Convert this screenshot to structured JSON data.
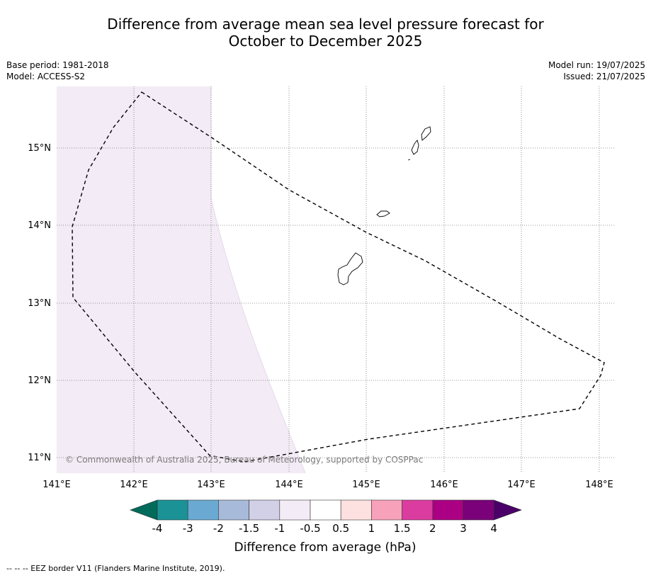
{
  "title": {
    "line1": "Difference from average mean sea level pressure forecast for",
    "line2": "October to December 2025"
  },
  "meta_left": {
    "base_period": "Base period: 1981-2018",
    "model": "Model: ACCESS-S2"
  },
  "meta_right": {
    "model_run": "Model run: 19/07/2025",
    "issued": "Issued: 21/07/2025"
  },
  "map": {
    "lon_ticks": [
      "141°E",
      "142°E",
      "143°E",
      "144°E",
      "145°E",
      "146°E",
      "147°E",
      "148°E"
    ],
    "lat_ticks": [
      "15°N",
      "14°N",
      "13°N",
      "12°N",
      "11°N"
    ],
    "copyright": "© Commonwealth of Australia 2025, Bureau of Meteorology, supported by COSPPac",
    "shaded_category": "-1 to -0.5",
    "colors": {
      "shading": "#f3ebf5",
      "gridline": "#777777",
      "eez": "#000000"
    }
  },
  "colorbar": {
    "label": "Difference from average (hPa)",
    "ticks": [
      "-4",
      "-3",
      "-2",
      "-1.5",
      "-1",
      "-0.5",
      "0.5",
      "1",
      "1.5",
      "2",
      "3",
      "4"
    ],
    "under_color": "#006b5a",
    "over_color": "#4a0068",
    "colors": [
      "#1b9296",
      "#6aaad2",
      "#a7bad9",
      "#d1d0e6",
      "#f3ebf5",
      "#ffffff",
      "#fde0e0",
      "#f8a1bb",
      "#db3c9f",
      "#ab0083",
      "#7a0179"
    ]
  },
  "footnote": "--  --  -- EEZ border V11 (Flanders Marine Institute, 2019)."
}
